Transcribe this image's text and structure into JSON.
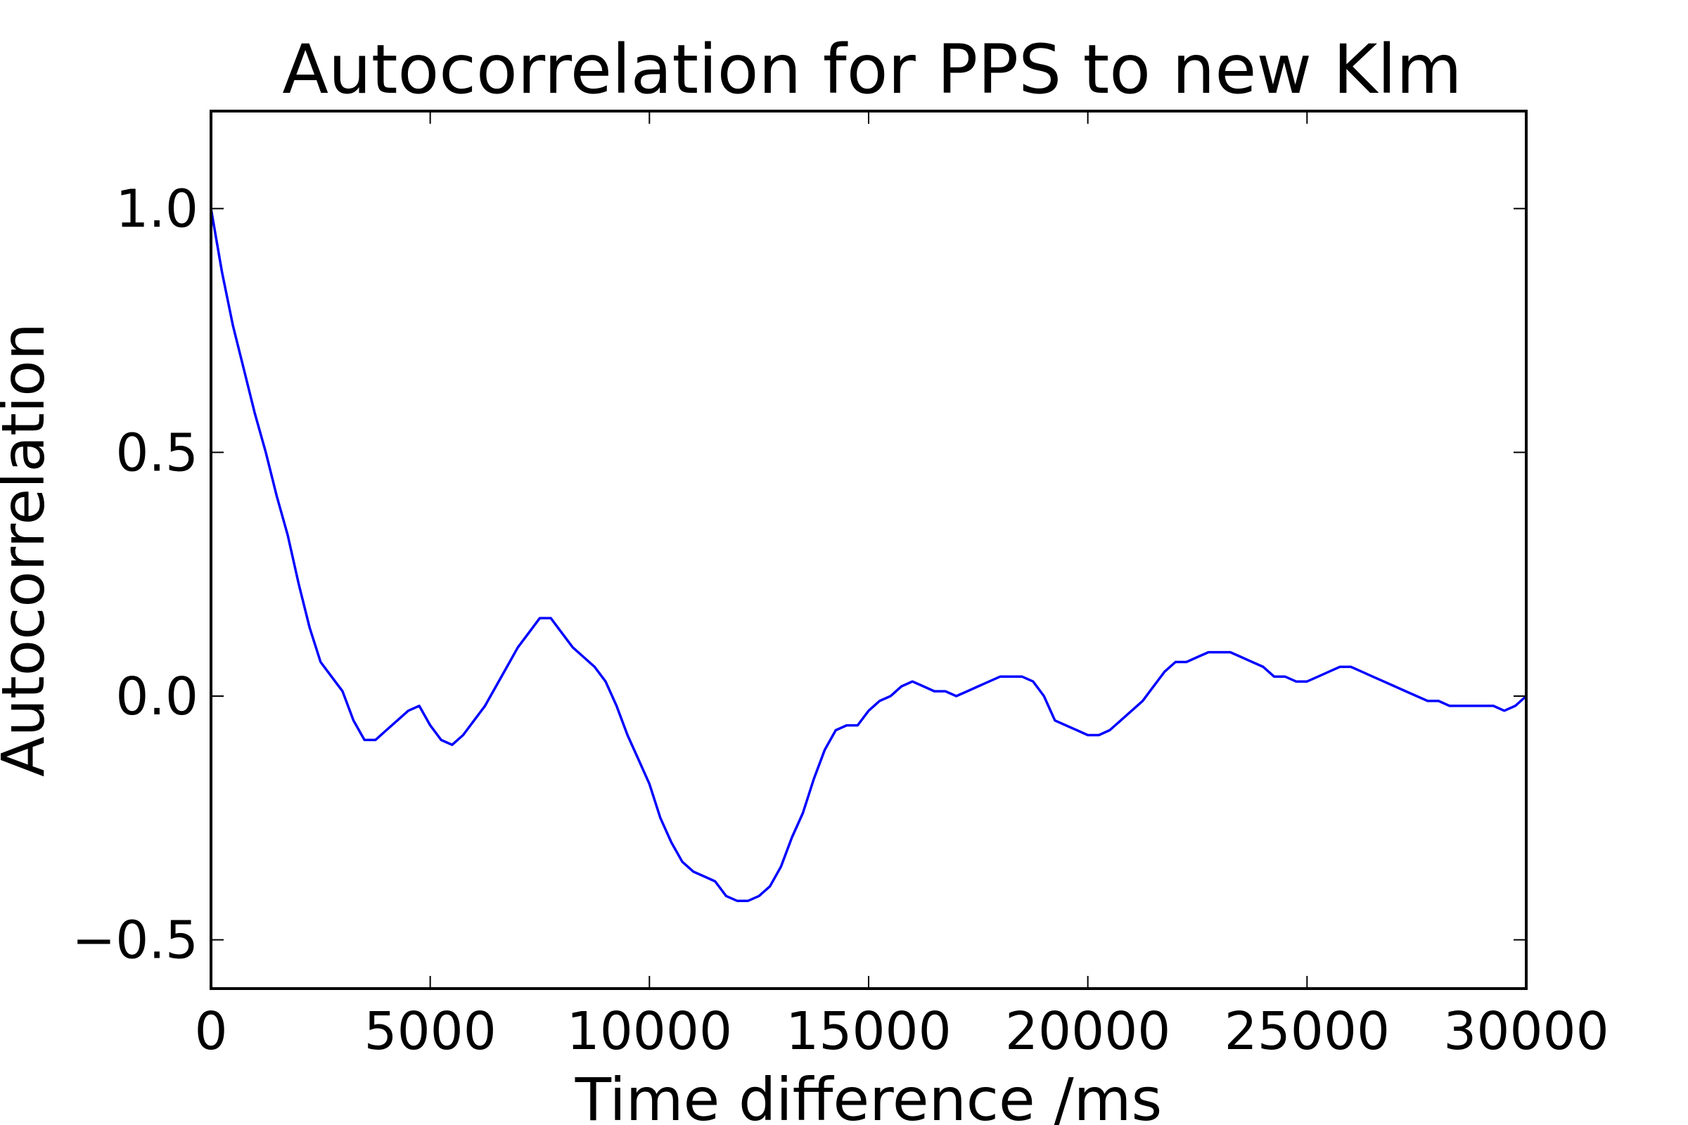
{
  "chart_data": {
    "type": "line",
    "title": "Autocorrelation for PPS to new Klm",
    "xlabel": "Time difference /ms",
    "ylabel": "Autocorrelation",
    "xlim": [
      0,
      30000
    ],
    "ylim": [
      -0.6,
      1.2
    ],
    "xticks": [
      0,
      5000,
      10000,
      15000,
      20000,
      25000,
      30000
    ],
    "xtick_labels": [
      "0",
      "5000",
      "10000",
      "15000",
      "20000",
      "25000",
      "30000"
    ],
    "yticks": [
      -0.5,
      0.0,
      0.5,
      1.0
    ],
    "ytick_labels": [
      "−0.5",
      "0.0",
      "0.5",
      "1.0"
    ],
    "grid": false,
    "series": [
      {
        "color": "#0000ff",
        "x": [
          0,
          250,
          500,
          750,
          1000,
          1250,
          1500,
          1750,
          2000,
          2250,
          2500,
          2750,
          3000,
          3250,
          3500,
          3750,
          4000,
          4250,
          4500,
          4750,
          5000,
          5250,
          5500,
          5750,
          6000,
          6250,
          6500,
          6750,
          7000,
          7250,
          7500,
          7750,
          8000,
          8250,
          8500,
          8750,
          9000,
          9250,
          9500,
          9750,
          10000,
          10250,
          10500,
          10750,
          11000,
          11250,
          11500,
          11750,
          12000,
          12250,
          12500,
          12750,
          13000,
          13250,
          13500,
          13750,
          14000,
          14250,
          14500,
          14750,
          15000,
          15250,
          15500,
          15750,
          16000,
          16250,
          16500,
          16750,
          17000,
          17250,
          17500,
          17750,
          18000,
          18250,
          18500,
          18750,
          19000,
          19250,
          19500,
          19750,
          20000,
          20250,
          20500,
          20750,
          21000,
          21250,
          21500,
          21750,
          22000,
          22250,
          22500,
          22750,
          23000,
          23250,
          23500,
          23750,
          24000,
          24250,
          24500,
          24750,
          25000,
          25250,
          25500,
          25750,
          26000,
          26250,
          26500,
          26750,
          27000,
          27250,
          27500,
          27750,
          28000,
          28250,
          28500,
          28750,
          29000,
          29250,
          29500,
          29750,
          30000
        ],
        "y": [
          1.0,
          0.87,
          0.76,
          0.67,
          0.58,
          0.5,
          0.41,
          0.33,
          0.23,
          0.14,
          0.07,
          0.04,
          0.01,
          -0.05,
          -0.09,
          -0.09,
          -0.07,
          -0.05,
          -0.03,
          -0.02,
          -0.06,
          -0.09,
          -0.1,
          -0.08,
          -0.05,
          -0.02,
          0.02,
          0.06,
          0.1,
          0.13,
          0.16,
          0.16,
          0.13,
          0.1,
          0.08,
          0.06,
          0.03,
          -0.02,
          -0.08,
          -0.13,
          -0.18,
          -0.25,
          -0.3,
          -0.34,
          -0.36,
          -0.37,
          -0.38,
          -0.41,
          -0.42,
          -0.42,
          -0.41,
          -0.39,
          -0.35,
          -0.29,
          -0.24,
          -0.17,
          -0.11,
          -0.07,
          -0.06,
          -0.06,
          -0.03,
          -0.01,
          0.0,
          0.02,
          0.03,
          0.02,
          0.01,
          0.01,
          0.0,
          0.01,
          0.02,
          0.03,
          0.04,
          0.04,
          0.04,
          0.03,
          0.0,
          -0.05,
          -0.06,
          -0.07,
          -0.08,
          -0.08,
          -0.07,
          -0.05,
          -0.03,
          -0.01,
          0.02,
          0.05,
          0.07,
          0.07,
          0.08,
          0.09,
          0.09,
          0.09,
          0.08,
          0.07,
          0.06,
          0.04,
          0.04,
          0.03,
          0.03,
          0.04,
          0.05,
          0.06,
          0.06,
          0.05,
          0.04,
          0.03,
          0.02,
          0.01,
          0.0,
          -0.01,
          -0.01,
          -0.02,
          -0.02,
          -0.02,
          -0.02,
          -0.02,
          -0.03,
          -0.02,
          0.0
        ]
      }
    ]
  }
}
